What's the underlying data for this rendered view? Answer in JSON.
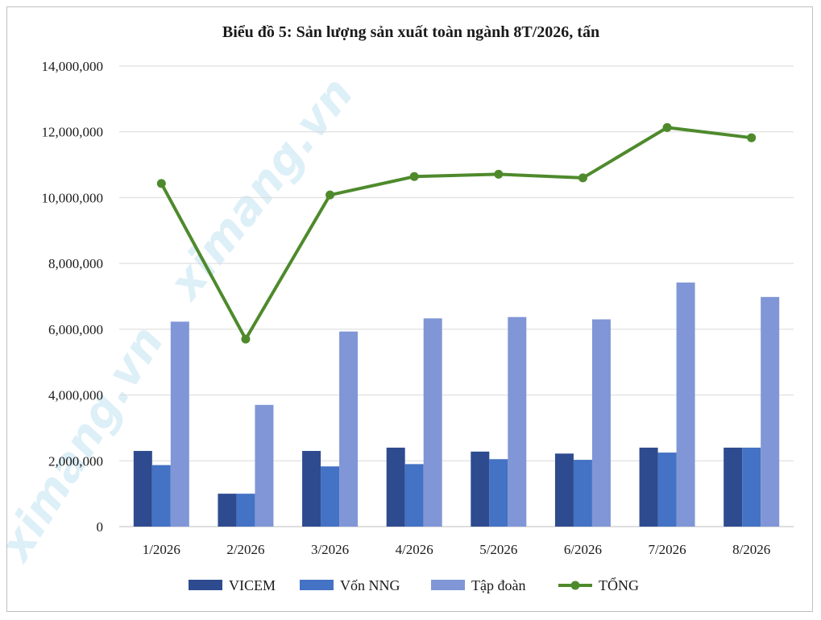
{
  "chart_data": {
    "type": "bar",
    "title": "Biểu đồ 5: Sản lượng sản xuất toàn ngành 8T/2026, tấn",
    "xlabel": "",
    "ylabel": "",
    "categories": [
      "1/2026",
      "2/2026",
      "3/2026",
      "4/2026",
      "5/2026",
      "6/2026",
      "7/2026",
      "8/2026"
    ],
    "ylim": [
      0,
      14000000
    ],
    "yticks": [
      0,
      2000000,
      4000000,
      6000000,
      8000000,
      10000000,
      12000000,
      14000000
    ],
    "ytick_labels": [
      "0",
      "2,000,000",
      "4,000,000",
      "6,000,000",
      "8,000,000",
      "10,000,000",
      "12,000,000",
      "14,000,000"
    ],
    "grid": "horizontal",
    "legend_position": "bottom",
    "series": [
      {
        "name": "VICEM",
        "kind": "bar",
        "color": "#2e4b8f",
        "values": [
          2300000,
          1000000,
          2300000,
          2400000,
          2280000,
          2220000,
          2400000,
          2400000
        ]
      },
      {
        "name": "Vốn NNG",
        "kind": "bar",
        "color": "#4472c4",
        "values": [
          1870000,
          1000000,
          1830000,
          1900000,
          2050000,
          2030000,
          2250000,
          2400000
        ]
      },
      {
        "name": "Tập đoàn",
        "kind": "bar",
        "color": "#8096d6",
        "values": [
          6230000,
          3700000,
          5930000,
          6330000,
          6370000,
          6300000,
          7420000,
          6980000
        ]
      },
      {
        "name": "TỔNG",
        "kind": "line",
        "color": "#4e8a2c",
        "values": [
          10430000,
          5700000,
          10080000,
          10640000,
          10710000,
          10600000,
          12130000,
          11820000
        ]
      }
    ],
    "watermark": "ximang.vn"
  }
}
